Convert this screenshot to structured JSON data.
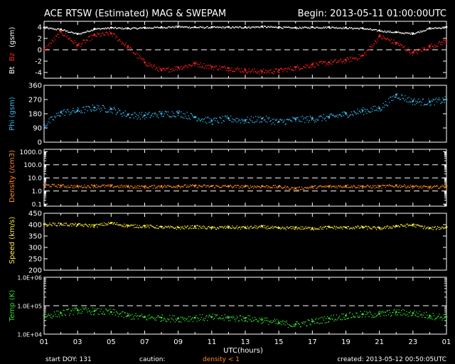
{
  "header": {
    "title": "ACE RTSW (Estimated) MAG & SWEPAM",
    "begin": "Begin: 2013-05-11 01:00:00UTC"
  },
  "footer": {
    "start_doy": "start DOY: 131",
    "caution": "caution:",
    "density_note": "density < 1",
    "created": "created: 2013-05-12 00:50:05UTC"
  },
  "xaxis": {
    "label": "UTC(hours)",
    "ticks": [
      "01",
      "03",
      "05",
      "07",
      "09",
      "11",
      "13",
      "15",
      "17",
      "19",
      "21",
      "23",
      "01"
    ]
  },
  "colors": {
    "background": "#000000",
    "frame": "#ffffff",
    "bt": "#ffffff",
    "bz": "#ff2020",
    "phi": "#33bbee",
    "density": "#ff8c1a",
    "speed": "#ffee33",
    "temp": "#33dd33"
  },
  "chart_data": [
    {
      "type": "scatter",
      "id": "mag",
      "ylabel_parts": [
        "Bt",
        "Bz",
        "(gsm)"
      ],
      "ylim": [
        -5,
        5
      ],
      "yticks": [
        "4",
        "2",
        "0",
        "-2",
        "-4"
      ],
      "dashed_lines": [
        0
      ],
      "series": [
        {
          "name": "Bt",
          "x": [
            1,
            2,
            3,
            4,
            5,
            6,
            7,
            8,
            9,
            10,
            11,
            12,
            13,
            14,
            15,
            16,
            17,
            18,
            19,
            20,
            21,
            22,
            23,
            24,
            25
          ],
          "values": [
            3.9,
            3.6,
            2.8,
            3.7,
            3.9,
            3.8,
            3.9,
            4.0,
            4.1,
            4.0,
            4.0,
            4.0,
            4.0,
            4.1,
            4.0,
            3.9,
            4.0,
            4.0,
            3.9,
            3.8,
            3.4,
            3.1,
            2.9,
            3.8,
            4.0
          ]
        },
        {
          "name": "Bz",
          "x": [
            1,
            2,
            3,
            4,
            5,
            6,
            7,
            8,
            9,
            10,
            11,
            12,
            13,
            14,
            15,
            16,
            17,
            18,
            19,
            20,
            21,
            22,
            23,
            24,
            25
          ],
          "values": [
            0,
            3.2,
            0.8,
            2.6,
            2.9,
            0.5,
            -2.2,
            -3.6,
            -3.1,
            -2.4,
            -3.0,
            -3.2,
            -3.6,
            -3.8,
            -3.6,
            -3.1,
            -2.6,
            -2.2,
            -1.8,
            -1.0,
            2.4,
            1.2,
            -0.5,
            0.6,
            1.6
          ]
        }
      ]
    },
    {
      "type": "scatter",
      "id": "phi",
      "ylabel": "Phi (gsm)",
      "ylim": [
        0,
        360
      ],
      "yticks": [
        "360",
        "270",
        "180",
        "90",
        "0"
      ],
      "series": [
        {
          "name": "Phi",
          "x": [
            1,
            2,
            3,
            4,
            5,
            6,
            7,
            8,
            9,
            10,
            11,
            12,
            13,
            14,
            15,
            16,
            17,
            18,
            19,
            20,
            21,
            22,
            23,
            24,
            25
          ],
          "values": [
            110,
            190,
            200,
            220,
            210,
            175,
            170,
            180,
            185,
            160,
            135,
            150,
            140,
            150,
            130,
            145,
            150,
            160,
            180,
            200,
            215,
            300,
            260,
            255,
            270
          ]
        }
      ]
    },
    {
      "type": "scatter",
      "id": "density",
      "ylabel": "Density (/cm3)",
      "scale": "log",
      "ylim": [
        0.07,
        1500
      ],
      "yticks": [
        "1000.0",
        "100.0",
        "10.0",
        "1.0",
        "0.1"
      ],
      "dashed_lines": [
        100,
        10,
        1
      ],
      "series": [
        {
          "name": "Density",
          "x": [
            1,
            2,
            3,
            4,
            5,
            6,
            7,
            8,
            9,
            10,
            11,
            12,
            13,
            14,
            15,
            16,
            17,
            18,
            19,
            20,
            21,
            22,
            23,
            24,
            25
          ],
          "values": [
            2.9,
            2.6,
            2.3,
            2.6,
            2.5,
            2.3,
            2.2,
            2.4,
            2.5,
            2.5,
            2.4,
            2.4,
            2.3,
            2.4,
            2.2,
            1.6,
            2.1,
            2.3,
            2.5,
            2.3,
            2.3,
            2.7,
            2.3,
            2.0,
            2.4
          ]
        }
      ]
    },
    {
      "type": "scatter",
      "id": "speed",
      "ylabel": "Speed (km/s)",
      "ylim": [
        200,
        450
      ],
      "yticks": [
        "450",
        "400",
        "350",
        "300",
        "250",
        "200"
      ],
      "series": [
        {
          "name": "Speed",
          "x": [
            1,
            2,
            3,
            4,
            5,
            6,
            7,
            8,
            9,
            10,
            11,
            12,
            13,
            14,
            15,
            16,
            17,
            18,
            19,
            20,
            21,
            22,
            23,
            24,
            25
          ],
          "values": [
            402,
            404,
            400,
            397,
            408,
            396,
            395,
            390,
            388,
            392,
            387,
            390,
            388,
            392,
            385,
            388,
            385,
            390,
            388,
            390,
            385,
            395,
            400,
            385,
            390
          ]
        }
      ]
    },
    {
      "type": "scatter",
      "id": "temp",
      "ylabel": "Temp (K)",
      "scale": "log",
      "ylim": [
        10000,
        1000000
      ],
      "yticks": [
        "1.0E+06",
        "1.0E+05",
        "1.0E+04"
      ],
      "dashed_lines": [
        100000
      ],
      "series": [
        {
          "name": "Temp",
          "x": [
            1,
            2,
            3,
            4,
            5,
            6,
            7,
            8,
            9,
            10,
            11,
            12,
            13,
            14,
            15,
            16,
            17,
            18,
            19,
            20,
            21,
            22,
            23,
            24,
            25
          ],
          "values": [
            45000,
            55000,
            70000,
            65000,
            60000,
            45000,
            40000,
            38000,
            36000,
            38000,
            40000,
            38000,
            37000,
            32000,
            25000,
            22000,
            28000,
            36000,
            45000,
            50000,
            52000,
            60000,
            55000,
            45000,
            40000
          ]
        }
      ]
    }
  ]
}
